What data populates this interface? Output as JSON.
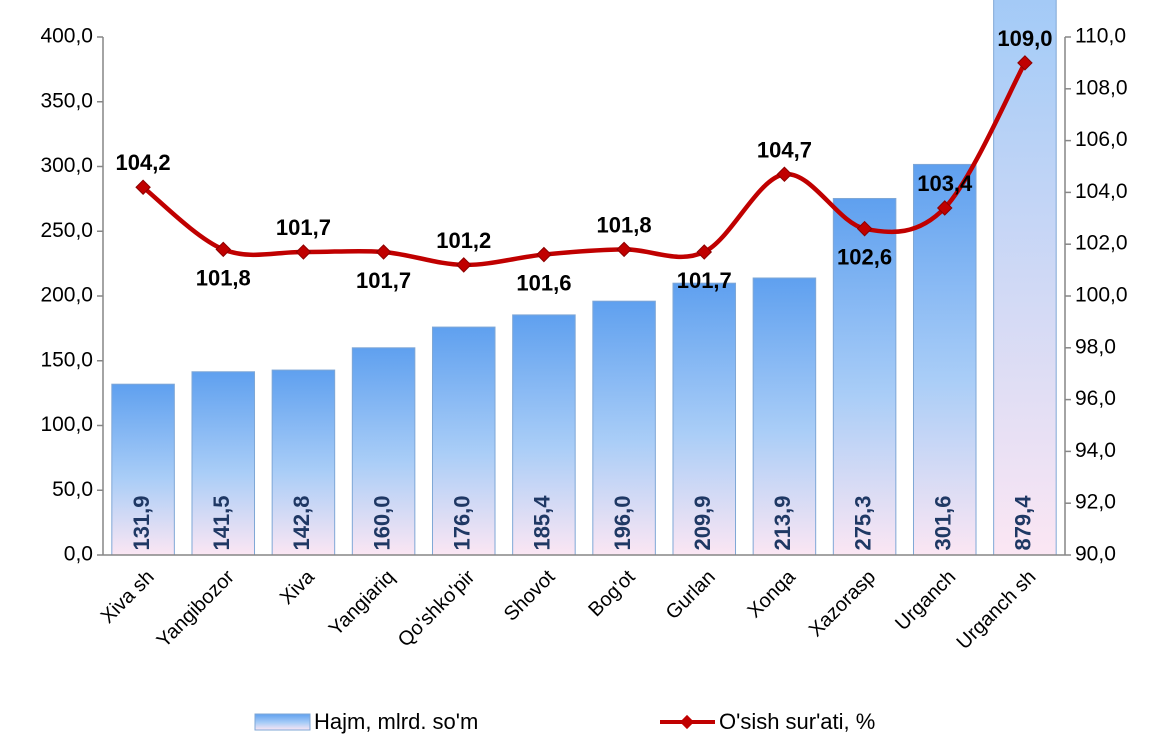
{
  "chart_data": {
    "type": "bar",
    "categories": [
      "Xiva sh",
      "Yangibozor",
      "Xiva",
      "Yangiariq",
      "Qo'shko'pir",
      "Shovot",
      "Bog'ot",
      "Gurlan",
      "Xonqa",
      "Xazorasp",
      "Urganch",
      "Urganch sh"
    ],
    "series": [
      {
        "name": "Hajm, mlrd. so'm",
        "type": "bar",
        "color": "#5b9bd5",
        "values": [
          131.9,
          141.5,
          142.8,
          160.0,
          176.0,
          185.4,
          196.0,
          209.9,
          213.9,
          275.3,
          301.6,
          879.4
        ],
        "value_labels": [
          "131,9",
          "141,5",
          "142,8",
          "160,0",
          "176,0",
          "185,4",
          "196,0",
          "209,9",
          "213,9",
          "275,3",
          "301,6",
          "879,4"
        ]
      },
      {
        "name": "O'sish sur'ati, %",
        "type": "line",
        "axis": "y2",
        "color": "#c00000",
        "values": [
          104.2,
          101.8,
          101.7,
          101.7,
          101.2,
          101.6,
          101.8,
          101.7,
          104.7,
          102.6,
          103.4,
          109.0
        ],
        "value_labels": [
          "104,2",
          "101,8",
          "101,7",
          "101,7",
          "101,2",
          "101,6",
          "101,8",
          "101,7",
          "104,7",
          "102,6",
          "103,4",
          "109,0"
        ]
      }
    ],
    "ylim": [
      0,
      400
    ],
    "yticks": [
      {
        "value": 0,
        "label": "0,0"
      },
      {
        "value": 50,
        "label": "50,0"
      },
      {
        "value": 100,
        "label": "100,0"
      },
      {
        "value": 150,
        "label": "150,0"
      },
      {
        "value": 200,
        "label": "200,0"
      },
      {
        "value": 250,
        "label": "250,0"
      },
      {
        "value": 300,
        "label": "300,0"
      },
      {
        "value": 350,
        "label": "350,0"
      },
      {
        "value": 400,
        "label": "400,0"
      }
    ],
    "y2lim": [
      90,
      110
    ],
    "y2ticks": [
      {
        "value": 90,
        "label": "90,0"
      },
      {
        "value": 92,
        "label": "92,0"
      },
      {
        "value": 94,
        "label": "94,0"
      },
      {
        "value": 96,
        "label": "96,0"
      },
      {
        "value": 98,
        "label": "98,0"
      },
      {
        "value": 100,
        "label": "100,0"
      },
      {
        "value": 102,
        "label": "102,0"
      },
      {
        "value": 104,
        "label": "104,0"
      },
      {
        "value": 106,
        "label": "106,0"
      },
      {
        "value": 108,
        "label": "108,0"
      },
      {
        "value": 110,
        "label": "110,0"
      }
    ],
    "legend": "bottom"
  }
}
